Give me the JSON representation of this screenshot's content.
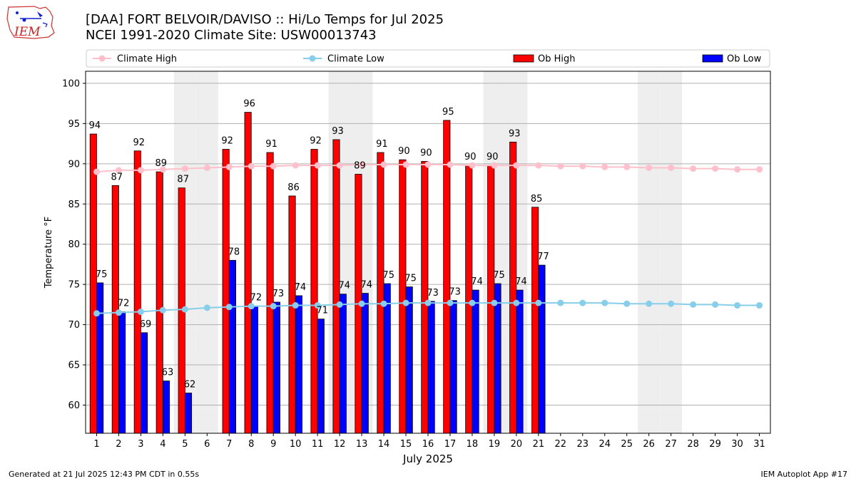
{
  "header": {
    "title_line1": "[DAA] FORT BELVOIR/DAVISO :: Hi/Lo Temps for Jul 2025",
    "title_line2": "NCEI 1991-2020 Climate Site: USW00013743",
    "logo_text": "IEM"
  },
  "footer": {
    "left": "Generated at 21 Jul 2025 12:43 PM CDT in 0.55s",
    "right": "IEM Autoplot App #17"
  },
  "colors": {
    "ob_high": "#ff0000",
    "ob_low": "#0000ff",
    "climate_high": "#ffc0cb",
    "climate_low": "#87ceeb",
    "weekend_shade": "#eeeeee",
    "grid": "#b0b0b0"
  },
  "chart_data": {
    "type": "bar",
    "xlabel": "July 2025",
    "ylabel": "Temperature °F",
    "ylim": [
      56.5,
      101.5
    ],
    "yticks": [
      60,
      65,
      70,
      75,
      80,
      85,
      90,
      95,
      100
    ],
    "grid": "horizontal",
    "legend_position": "top",
    "categories": [
      "1",
      "2",
      "3",
      "4",
      "5",
      "6",
      "7",
      "8",
      "9",
      "10",
      "11",
      "12",
      "13",
      "14",
      "15",
      "16",
      "17",
      "18",
      "19",
      "20",
      "21",
      "22",
      "23",
      "24",
      "25",
      "26",
      "27",
      "28",
      "29",
      "30",
      "31"
    ],
    "shaded_days": [
      5,
      6,
      12,
      13,
      19,
      20,
      26,
      27
    ],
    "series": [
      {
        "name": "Ob High",
        "kind": "bar",
        "values": [
          93.7,
          87.3,
          91.6,
          89.0,
          87.0,
          null,
          91.8,
          96.4,
          91.4,
          86.0,
          91.8,
          93.0,
          88.7,
          91.4,
          90.5,
          90.3,
          95.4,
          89.8,
          89.8,
          92.7,
          84.6,
          null,
          null,
          null,
          null,
          null,
          null,
          null,
          null,
          null,
          null
        ],
        "labels": [
          "94",
          "87",
          "92",
          "89",
          "87",
          null,
          "92",
          "96",
          "91",
          "86",
          "92",
          "93",
          "89",
          "91",
          "90",
          "90",
          "95",
          "90",
          "90",
          "93",
          "85",
          null,
          null,
          null,
          null,
          null,
          null,
          null,
          null,
          null,
          null
        ]
      },
      {
        "name": "Ob Low",
        "kind": "bar",
        "values": [
          75.2,
          71.6,
          69.0,
          63.0,
          61.5,
          null,
          78.0,
          72.3,
          72.8,
          73.6,
          70.7,
          73.8,
          73.9,
          75.1,
          74.7,
          72.9,
          73.0,
          74.3,
          75.1,
          74.3,
          77.4,
          null,
          null,
          null,
          null,
          null,
          null,
          null,
          null,
          null,
          null
        ],
        "labels": [
          "75",
          "72",
          "69",
          "63",
          "62",
          null,
          "78",
          "72",
          "73",
          "74",
          "71",
          "74",
          "74",
          "75",
          "75",
          "73",
          "73",
          "74",
          "75",
          "74",
          "77",
          null,
          null,
          null,
          null,
          null,
          null,
          null,
          null,
          null,
          null
        ]
      },
      {
        "name": "Climate High",
        "kind": "line",
        "values": [
          89.0,
          89.2,
          89.2,
          89.3,
          89.4,
          89.5,
          89.6,
          89.7,
          89.7,
          89.8,
          89.8,
          89.8,
          89.9,
          89.9,
          89.9,
          89.9,
          89.9,
          89.8,
          89.8,
          89.8,
          89.8,
          89.7,
          89.7,
          89.6,
          89.6,
          89.5,
          89.5,
          89.4,
          89.4,
          89.3,
          89.3
        ]
      },
      {
        "name": "Climate Low",
        "kind": "line",
        "values": [
          71.4,
          71.5,
          71.6,
          71.8,
          71.9,
          72.1,
          72.2,
          72.3,
          72.3,
          72.4,
          72.4,
          72.5,
          72.6,
          72.6,
          72.7,
          72.7,
          72.7,
          72.7,
          72.7,
          72.7,
          72.7,
          72.7,
          72.7,
          72.7,
          72.6,
          72.6,
          72.6,
          72.5,
          72.5,
          72.4,
          72.4
        ]
      }
    ],
    "legend": [
      "Climate High",
      "Climate Low",
      "Ob High",
      "Ob Low"
    ]
  }
}
